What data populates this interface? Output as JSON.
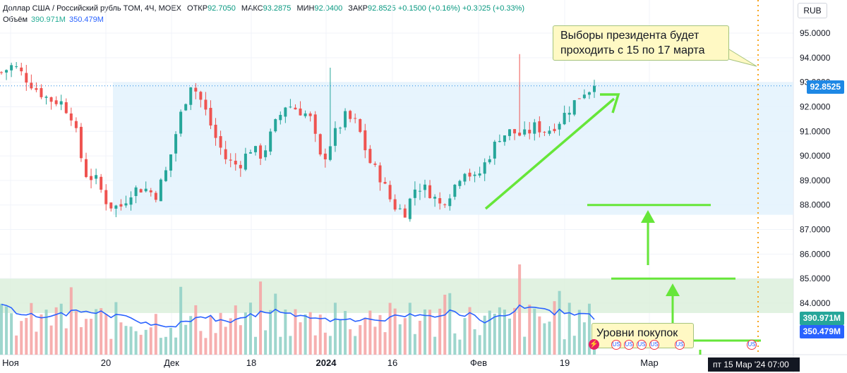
{
  "legend": {
    "symbol": "Доллар США / Российский рубль TOM, 4Ч, MOEX",
    "open_label": "ОТКР",
    "open": "92.7050",
    "high_label": "МАКС",
    "high": "93.2875",
    "low_label": "МИН",
    "low": "92.0400",
    "close_label": "ЗАКР",
    "close": "92.8525",
    "change": "+0.1500 (+0.16%)",
    "change2": "+0.3025 (+0.33%)",
    "volume_label": "Объём",
    "volume_a": "390.971M",
    "volume_b": "350.479M"
  },
  "currency": "RUB",
  "annotations": {
    "election": "Выборы президента будет проходить с 15 по 17 марта",
    "buy_levels": "Уровни покупок"
  },
  "axis_labels": {
    "last_price": "92.8525",
    "volume_a": "390.971M",
    "volume_b": "350.479M",
    "crosshair_time": "пт 15 Мар '24   07:00"
  },
  "colors": {
    "up": "#26a69a",
    "down": "#ef5350",
    "range_fill": "#e3f2fd",
    "volume_zone": "#d9efd9",
    "arrow": "#66e639",
    "volume_ma": "#2962ff",
    "crosshair": "#f7a41d"
  },
  "chart_data": {
    "type": "candlestick",
    "title": "Доллар США / Российский рубль TOM, 4Ч, MOEX",
    "y_axis_ticks": [
      "95.0000",
      "94.0000",
      "93.0000",
      "92.0000",
      "91.0000",
      "90.0000",
      "89.0000",
      "88.0000",
      "87.0000",
      "86.0000",
      "85.0000",
      "84.0000"
    ],
    "ylim": [
      83.0,
      95.8
    ],
    "x_axis_ticks": [
      "Ноя",
      "20",
      "Дек",
      "18",
      "2024",
      "16",
      "Фев",
      "19",
      "Мар"
    ],
    "trend_path": [
      [
        93.4,
        0
      ],
      [
        93.7,
        1
      ],
      [
        93.2,
        2
      ],
      [
        92.7,
        3
      ],
      [
        92.3,
        4
      ],
      [
        92.2,
        5
      ],
      [
        91.6,
        6
      ],
      [
        89.3,
        7
      ],
      [
        89.0,
        8
      ],
      [
        88.0,
        9
      ],
      [
        87.9,
        10
      ],
      [
        88.6,
        11
      ],
      [
        88.7,
        12
      ],
      [
        88.4,
        13
      ],
      [
        89.5,
        14
      ],
      [
        91.5,
        15
      ],
      [
        93.0,
        16
      ],
      [
        92.1,
        17
      ],
      [
        90.8,
        18
      ],
      [
        89.8,
        19
      ],
      [
        89.6,
        20
      ],
      [
        90.3,
        21
      ],
      [
        90.0,
        22
      ],
      [
        91.2,
        23
      ],
      [
        92.1,
        24
      ],
      [
        91.9,
        25
      ],
      [
        91.6,
        26
      ],
      [
        89.7,
        27
      ],
      [
        90.8,
        28
      ],
      [
        91.6,
        29
      ],
      [
        91.3,
        30
      ],
      [
        89.8,
        31
      ],
      [
        89.1,
        32
      ],
      [
        88.0,
        33
      ],
      [
        87.7,
        34
      ],
      [
        88.8,
        35
      ],
      [
        88.6,
        36
      ],
      [
        88.0,
        37
      ],
      [
        88.6,
        38
      ],
      [
        89.5,
        39
      ],
      [
        89.0,
        40
      ],
      [
        89.9,
        41
      ],
      [
        90.8,
        42
      ],
      [
        91.0,
        43
      ],
      [
        90.8,
        44
      ],
      [
        91.2,
        45
      ],
      [
        91.0,
        46
      ],
      [
        91.4,
        47
      ],
      [
        92.0,
        48
      ],
      [
        92.6,
        49
      ],
      [
        92.8,
        50
      ]
    ],
    "n_candles": 120,
    "range_box": {
      "y_top": 93.0,
      "y_bottom": 87.6
    },
    "volume_zone": {
      "y_top": 85.0,
      "y_bottom": 83.6
    },
    "buy_levels": [
      88.0,
      85.0,
      82.6
    ],
    "last_price": 92.8525
  }
}
